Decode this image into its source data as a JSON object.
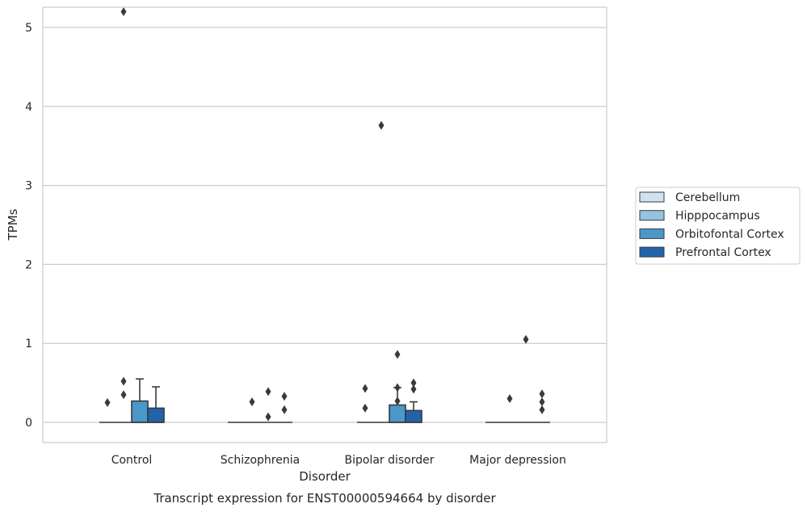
{
  "chart_data": {
    "type": "box",
    "caption": "Transcript expression for ENST00000594664 by disorder",
    "xlabel": "Disorder",
    "ylabel": "TPMs",
    "ylim": [
      -0.25,
      5.5
    ],
    "yticks": [
      0,
      1,
      2,
      3,
      4,
      5
    ],
    "grid": "horizontal",
    "legend_position": "right",
    "categories": [
      "Control",
      "Schizophrenia",
      "Bipolar disorder",
      "Major depression"
    ],
    "series": [
      {
        "name": "Cerebellum",
        "color": "#d0e1f2",
        "boxes": [
          {
            "q1": 0,
            "median": 0,
            "q3": 0,
            "whisker_low": 0,
            "whisker_high": 0,
            "outliers": [
              0.25
            ]
          },
          {
            "q1": 0,
            "median": 0,
            "q3": 0,
            "whisker_low": 0,
            "whisker_high": 0,
            "outliers": []
          },
          {
            "q1": 0,
            "median": 0,
            "q3": 0,
            "whisker_low": 0,
            "whisker_high": 0,
            "outliers": [
              0.18,
              0.43
            ]
          },
          {
            "q1": 0,
            "median": 0,
            "q3": 0,
            "whisker_low": 0,
            "whisker_high": 0,
            "outliers": []
          }
        ]
      },
      {
        "name": "Hipppocampus",
        "color": "#94c4df",
        "boxes": [
          {
            "q1": 0,
            "median": 0,
            "q3": 0,
            "whisker_low": 0,
            "whisker_high": 0,
            "outliers": [
              0.35,
              0.52,
              5.2
            ]
          },
          {
            "q1": 0,
            "median": 0,
            "q3": 0,
            "whisker_low": 0,
            "whisker_high": 0,
            "outliers": [
              0.26
            ]
          },
          {
            "q1": 0,
            "median": 0,
            "q3": 0,
            "whisker_low": 0,
            "whisker_high": 0,
            "outliers": [
              3.76
            ]
          },
          {
            "q1": 0,
            "median": 0,
            "q3": 0,
            "whisker_low": 0,
            "whisker_high": 0,
            "outliers": [
              0.3
            ]
          }
        ]
      },
      {
        "name": "Orbitofontal Cortex",
        "color": "#4a98c9",
        "boxes": [
          {
            "q1": 0,
            "median": 0,
            "q3": 0.27,
            "whisker_low": 0,
            "whisker_high": 0.55,
            "outliers": []
          },
          {
            "q1": 0,
            "median": 0,
            "q3": 0,
            "whisker_low": 0,
            "whisker_high": 0,
            "outliers": [
              0.07,
              0.39
            ]
          },
          {
            "q1": 0,
            "median": 0,
            "q3": 0.22,
            "whisker_low": 0,
            "whisker_high": 0.44,
            "outliers": [
              0.27,
              0.44,
              0.86
            ]
          },
          {
            "q1": 0,
            "median": 0,
            "q3": 0,
            "whisker_low": 0,
            "whisker_high": 0,
            "outliers": [
              1.05
            ]
          }
        ]
      },
      {
        "name": "Prefrontal Cortex",
        "color": "#2163aa",
        "boxes": [
          {
            "q1": 0,
            "median": 0,
            "q3": 0.18,
            "whisker_low": 0,
            "whisker_high": 0.45,
            "outliers": []
          },
          {
            "q1": 0,
            "median": 0,
            "q3": 0,
            "whisker_low": 0,
            "whisker_high": 0,
            "outliers": [
              0.16,
              0.33
            ]
          },
          {
            "q1": 0,
            "median": 0,
            "q3": 0.15,
            "whisker_low": 0,
            "whisker_high": 0.26,
            "outliers": [
              0.42,
              0.5
            ]
          },
          {
            "q1": 0,
            "median": 0,
            "q3": 0,
            "whisker_low": 0,
            "whisker_high": 0,
            "outliers": [
              0.16,
              0.26,
              0.36
            ]
          }
        ]
      }
    ]
  }
}
